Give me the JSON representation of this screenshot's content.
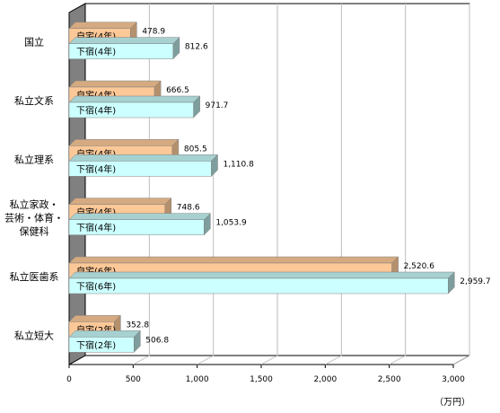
{
  "chart_data": {
    "type": "bar",
    "orientation": "horizontal",
    "title": "",
    "xlabel": "",
    "ylabel": "",
    "unit_label": "（万円）",
    "xlim": [
      0,
      3000
    ],
    "xticks": [
      0,
      500,
      1000,
      1500,
      2000,
      2500,
      3000
    ],
    "xtick_labels": [
      "0",
      "500",
      "1,000",
      "1,500",
      "2,000",
      "2,500",
      "3,000"
    ],
    "grid": true,
    "legend": "none",
    "categories": [
      {
        "name": "国立",
        "lines": [
          "国立"
        ]
      },
      {
        "name": "私立文系",
        "lines": [
          "私立文系"
        ]
      },
      {
        "name": "私立理系",
        "lines": [
          "私立理系"
        ]
      },
      {
        "name": "私立家政・芸術・体育・保健科",
        "lines": [
          "私立家政・",
          "芸術・体育・",
          "保健科"
        ]
      },
      {
        "name": "私立医歯系",
        "lines": [
          "私立医歯系"
        ]
      },
      {
        "name": "私立短大",
        "lines": [
          "私立短大"
        ]
      }
    ],
    "series": [
      {
        "color": "#fcc897",
        "values": [
          478.9,
          666.5,
          805.5,
          748.6,
          2520.6,
          352.8
        ],
        "value_labels": [
          "478.9",
          "666.5",
          "805.5",
          "748.6",
          "2,520.6",
          "352.8"
        ],
        "bar_labels": [
          "自宅(4年)",
          "自宅(4年)",
          "自宅(4年)",
          "自宅(4年)",
          "自宅(6年)",
          "自宅(2年)"
        ]
      },
      {
        "color": "#ccffff",
        "values": [
          812.6,
          971.7,
          1110.8,
          1053.9,
          2959.7,
          506.8
        ],
        "value_labels": [
          "812.6",
          "971.7",
          "1,110.8",
          "1,053.9",
          "2,959.7",
          "506.8"
        ],
        "bar_labels": [
          "下宿(4年)",
          "下宿(4年)",
          "下宿(4年)",
          "下宿(4年)",
          "下宿(6年)",
          "下宿(2年)"
        ]
      }
    ]
  }
}
